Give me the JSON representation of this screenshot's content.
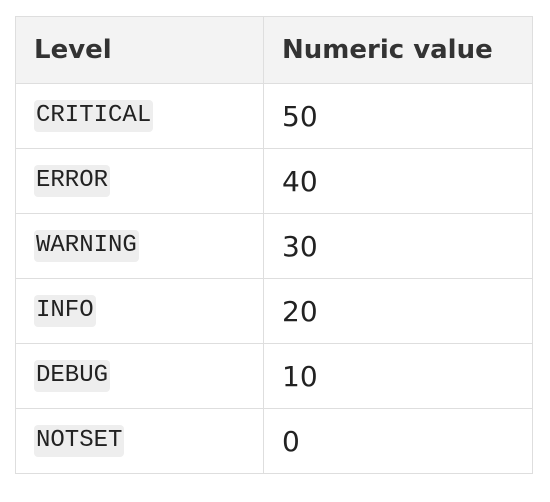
{
  "table": {
    "headers": [
      "Level",
      "Numeric value"
    ],
    "rows": [
      {
        "level": "CRITICAL",
        "value": "50"
      },
      {
        "level": "ERROR",
        "value": "40"
      },
      {
        "level": "WARNING",
        "value": "30"
      },
      {
        "level": "INFO",
        "value": "20"
      },
      {
        "level": "DEBUG",
        "value": "10"
      },
      {
        "level": "NOTSET",
        "value": "0"
      }
    ]
  },
  "colors": {
    "header_background": "#f3f3f3",
    "border": "#dedede",
    "code_background": "#eeeeee",
    "text": "#222222"
  }
}
